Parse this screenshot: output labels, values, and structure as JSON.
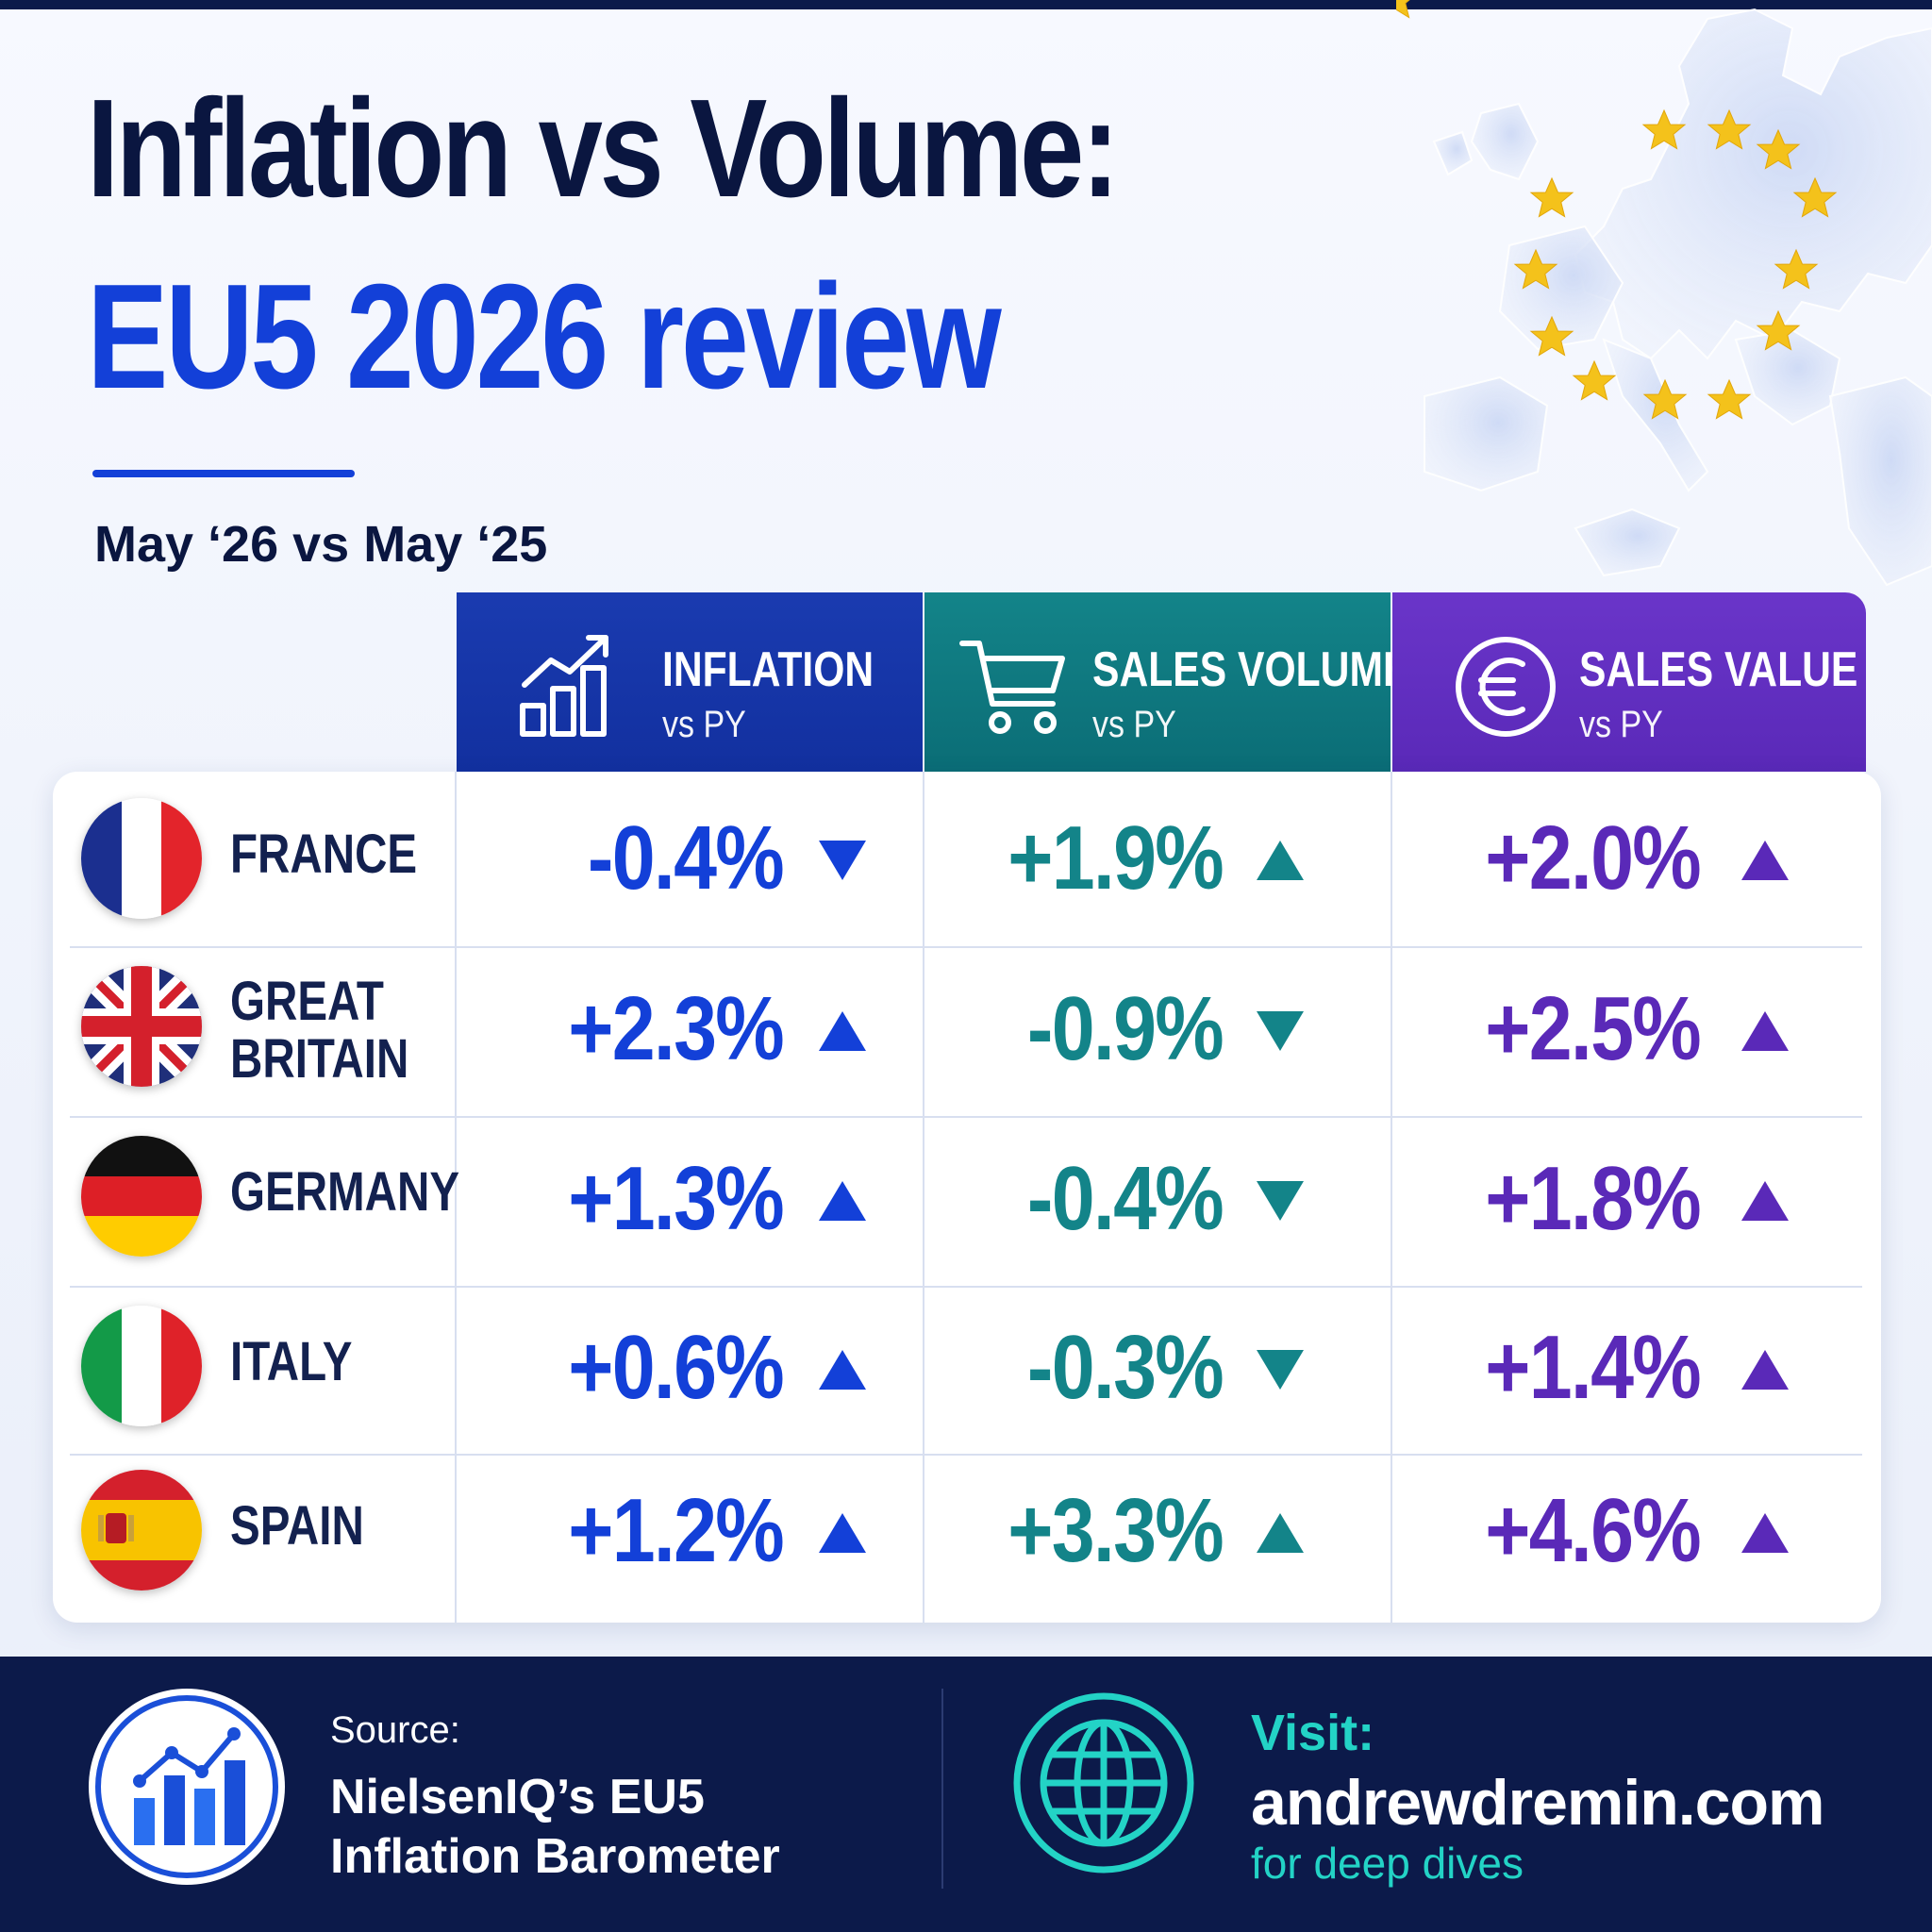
{
  "title": {
    "line1": "Inflation vs Volume:",
    "line2": "EU5 2026 review",
    "subtitle": "May ‘26 vs May ‘25"
  },
  "colors": {
    "inflation": "#1340d8",
    "volume": "#138489",
    "value": "#5a29b8",
    "navy": "#0a1640",
    "footer_bg": "#0c1a4a",
    "teal_accent": "#23d3c6",
    "eu_star": "#f4c21b"
  },
  "icons": {
    "inflation": "growth-chart-icon",
    "volume": "shopping-cart-icon",
    "value": "euro-coin-icon",
    "source": "bar-chart-icon",
    "visit": "globe-icon"
  },
  "chart_data": {
    "type": "table",
    "columns": [
      {
        "label": "INFLATION",
        "sub": "vs PY"
      },
      {
        "label": "SALES VOLUME",
        "sub": "vs PY"
      },
      {
        "label": "SALES VALUE",
        "sub": "vs PY"
      }
    ],
    "rows": [
      {
        "country": "FRANCE",
        "inflation": -0.4,
        "volume": 1.9,
        "value": 2.0,
        "labels": [
          "-0.4%",
          "+1.9%",
          "+2.0%"
        ],
        "trend": [
          "down",
          "up",
          "up"
        ]
      },
      {
        "country": "GREAT\nBRITAIN",
        "inflation": 2.3,
        "volume": -0.9,
        "value": 2.5,
        "labels": [
          "+2.3%",
          "-0.9%",
          "+2.5%"
        ],
        "trend": [
          "up",
          "down",
          "up"
        ]
      },
      {
        "country": "GERMANY",
        "inflation": 1.3,
        "volume": -0.4,
        "value": 1.8,
        "labels": [
          "+1.3%",
          "-0.4%",
          "+1.8%"
        ],
        "trend": [
          "up",
          "down",
          "up"
        ]
      },
      {
        "country": "ITALY",
        "inflation": 0.6,
        "volume": -0.3,
        "value": 1.4,
        "labels": [
          "+0.6%",
          "-0.3%",
          "+1.4%"
        ],
        "trend": [
          "up",
          "down",
          "up"
        ]
      },
      {
        "country": "SPAIN",
        "inflation": 1.2,
        "volume": 3.3,
        "value": 4.6,
        "labels": [
          "+1.2%",
          "+3.3%",
          "+4.6%"
        ],
        "trend": [
          "up",
          "up",
          "up"
        ]
      }
    ]
  },
  "footer": {
    "source_label": "Source:",
    "source_text": "NielsenIQ’s EU5\nInflation Barometer",
    "visit_label": "Visit:",
    "visit_url": "andrewdremin.com",
    "visit_sub": "for deep dives"
  }
}
